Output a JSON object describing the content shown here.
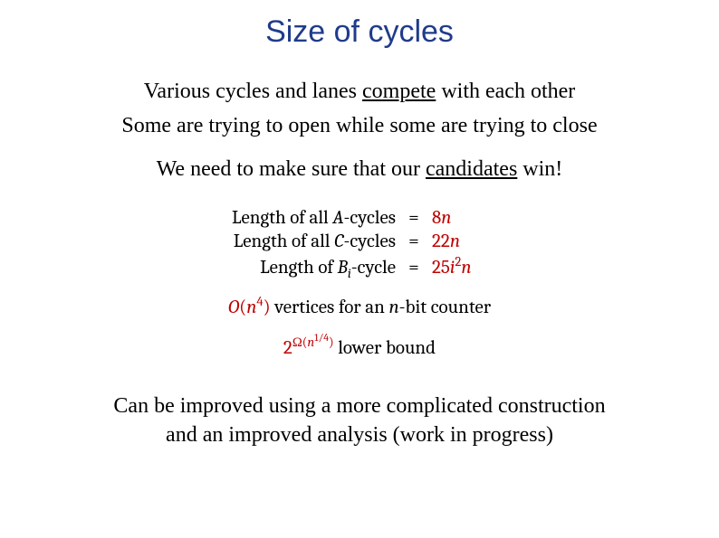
{
  "colors": {
    "title": "#1f3b8b",
    "accent": "#c00000",
    "text": "#000000",
    "background": "#ffffff"
  },
  "fonts": {
    "title_family": "Arial",
    "body_family": "Times New Roman",
    "math_family": "Cambria",
    "title_size_pt": 34,
    "body_size_pt": 24,
    "math_size_pt": 21
  },
  "title": "Size of cycles",
  "intro": {
    "line1_pre": "Various cycles and lanes ",
    "line1_u": "compete",
    "line1_post": " with each other",
    "line2": "Some are trying to open while some are trying to close",
    "line3_pre": "We need to make sure that our ",
    "line3_u": "candidates",
    "line3_post": " win!"
  },
  "equations": {
    "row1": {
      "left_pre": "Length of all ",
      "left_var": "A",
      "left_post": "-cycles",
      "rhs_num": "8",
      "rhs_var": "n"
    },
    "row2": {
      "left_pre": "Length of all ",
      "left_var": "C",
      "left_post": "-cycles",
      "rhs_num": "22",
      "rhs_var": "n"
    },
    "row3": {
      "left_pre": "Length of ",
      "left_var": "B",
      "left_sub": "i",
      "left_post": "-cycle",
      "rhs_num": "25",
      "rhs_var1": "i",
      "rhs_sup": "2",
      "rhs_var2": "n"
    }
  },
  "complexity": {
    "bigO_O": "O",
    "bigO_open": "(",
    "bigO_var": "n",
    "bigO_exp": "4",
    "bigO_close": ")",
    "vertices_text_mid": " vertices for an ",
    "vertices_var": "n",
    "vertices_text_post": "-bit counter",
    "lb_base": "2",
    "lb_exp_omega": "Ω(",
    "lb_exp_var": "n",
    "lb_exp_frac": "1/4",
    "lb_exp_close": ")",
    "lb_text": " lower bound"
  },
  "footer": {
    "line1": "Can be improved using a more complicated construction",
    "line2": "and an improved analysis (work in progress)"
  }
}
